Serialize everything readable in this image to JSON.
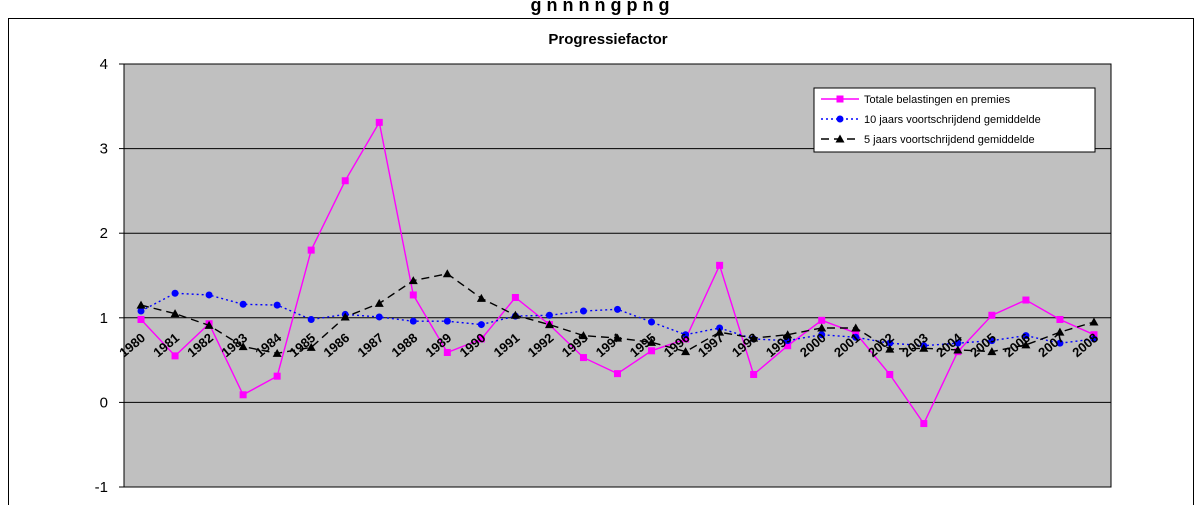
{
  "page": {
    "top_caption": "g  n   n    n   n  g       p       n   g",
    "colors": {
      "plot_bg": "#c0c0c0",
      "grid": "#000000",
      "frame": "#000000"
    }
  },
  "chart_data": {
    "type": "line",
    "title": "Progressiefactor",
    "xlabel": "",
    "ylabel": "",
    "ylim": [
      -1,
      4
    ],
    "yticks": [
      "-1",
      "0",
      "1",
      "2",
      "3",
      "4"
    ],
    "categories": [
      "1980",
      "1981",
      "1982",
      "1983",
      "1984",
      "1985",
      "1986",
      "1987",
      "1988",
      "1989",
      "1990",
      "1991",
      "1992",
      "1993",
      "1994",
      "1995",
      "1996",
      "1997",
      "1998",
      "1999",
      "2000",
      "2001",
      "2002",
      "2003",
      "2004",
      "2005",
      "2006",
      "2007",
      "2008"
    ],
    "grid": true,
    "legend_position": "top-right",
    "series": [
      {
        "name": "Totale belastingen en premies",
        "color": "#ff00ff",
        "line_style": "solid",
        "marker": "square",
        "values": [
          0.98,
          0.55,
          0.93,
          0.09,
          0.31,
          1.8,
          2.62,
          3.31,
          1.27,
          0.59,
          0.75,
          1.24,
          0.92,
          0.53,
          0.34,
          0.61,
          0.75,
          1.62,
          0.33,
          0.67,
          0.97,
          0.82,
          0.33,
          -0.25,
          0.6,
          1.03,
          1.21,
          0.98,
          0.8
        ]
      },
      {
        "name": "10 jaars voortschrijdend gemiddelde",
        "color": "#0000ff",
        "line_style": "dotted",
        "marker": "circle",
        "values": [
          1.08,
          1.29,
          1.27,
          1.16,
          1.15,
          0.98,
          1.04,
          1.01,
          0.96,
          0.96,
          0.92,
          1.02,
          1.03,
          1.08,
          1.1,
          0.95,
          0.8,
          0.88,
          0.75,
          0.73,
          0.8,
          0.77,
          0.7,
          0.67,
          0.7,
          0.73,
          0.79,
          0.7,
          0.75
        ]
      },
      {
        "name": "5 jaars voortschrijdend gemiddelde",
        "color": "#000000",
        "line_style": "dashed",
        "marker": "triangle",
        "values": [
          1.15,
          1.05,
          0.91,
          0.66,
          0.58,
          0.65,
          1.01,
          1.17,
          1.44,
          1.52,
          1.23,
          1.03,
          0.92,
          0.79,
          0.76,
          0.71,
          0.6,
          0.83,
          0.76,
          0.8,
          0.88,
          0.88,
          0.63,
          0.64,
          0.62,
          0.6,
          0.68,
          0.83,
          0.95
        ]
      }
    ]
  }
}
